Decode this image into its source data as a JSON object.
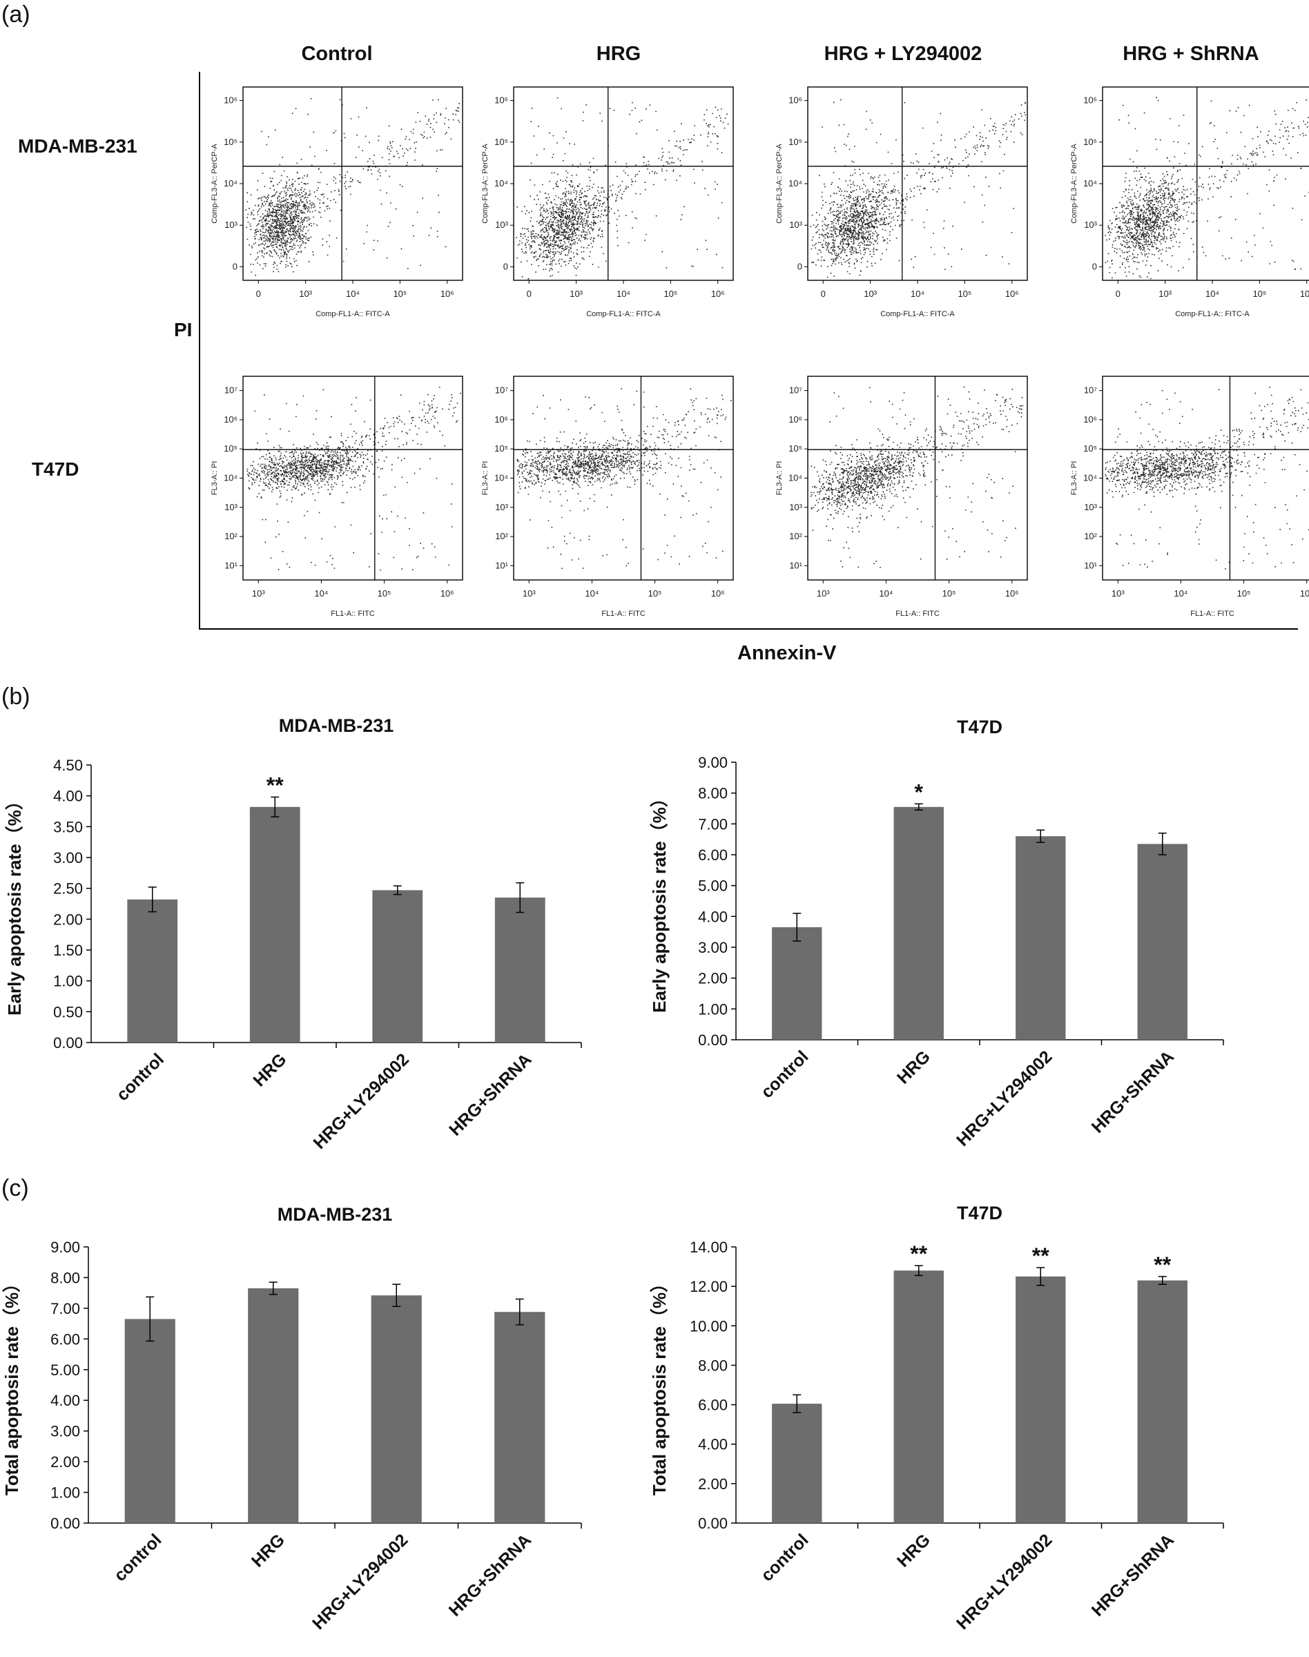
{
  "panels": {
    "a": "(a)",
    "b": "(b)",
    "c": "(c)"
  },
  "flow": {
    "columns": [
      "Control",
      "HRG",
      "HRG + LY294002",
      "HRG + ShRNA"
    ],
    "rows": [
      "MDA-MB-231",
      "T47D"
    ],
    "y_label": "PI",
    "x_label": "Annexin-V",
    "row_axes": [
      {
        "x_title": "Comp-FL1-A:: FITC-A",
        "y_title": "Comp-FL3-A:: PerCP-A",
        "x_ticks": [
          "0",
          "10³",
          "10⁴",
          "10⁵",
          "10⁶"
        ],
        "y_ticks": [
          "0",
          "10³",
          "10⁴",
          "10⁵",
          "10⁶"
        ]
      },
      {
        "x_title": "FL1-A:: FITC",
        "y_title": "FL3-A:: PI",
        "x_ticks": [
          "10³",
          "10⁴",
          "10⁵",
          "10⁶"
        ],
        "y_ticks": [
          "10¹",
          "10²",
          "10³",
          "10⁴",
          "10⁵",
          "10⁶",
          "10⁷"
        ]
      }
    ]
  },
  "chart_data": [
    {
      "id": "b-mda",
      "type": "bar",
      "title": "MDA-MB-231",
      "ylabel": "Early apoptosis rate（%）",
      "categories": [
        "control",
        "HRG",
        "HRG+LY294002",
        "HRG+ShRNA"
      ],
      "values": [
        2.32,
        3.82,
        2.47,
        2.35
      ],
      "errors": [
        0.2,
        0.16,
        0.07,
        0.24
      ],
      "significance": [
        "",
        "**",
        "",
        ""
      ],
      "ylim": [
        0,
        4.5
      ],
      "yticks": [
        "0.00",
        "0.50",
        "1.00",
        "1.50",
        "2.00",
        "2.50",
        "3.00",
        "3.50",
        "4.00",
        "4.50"
      ]
    },
    {
      "id": "b-t47d",
      "type": "bar",
      "title": "T47D",
      "ylabel": "Early apoptosis rate（%）",
      "categories": [
        "control",
        "HRG",
        "HRG+LY294002",
        "HRG+ShRNA"
      ],
      "values": [
        3.65,
        7.55,
        6.6,
        6.35
      ],
      "errors": [
        0.45,
        0.1,
        0.2,
        0.35
      ],
      "significance": [
        "",
        "*",
        "",
        ""
      ],
      "ylim": [
        0,
        9
      ],
      "yticks": [
        "0.00",
        "1.00",
        "2.00",
        "3.00",
        "4.00",
        "5.00",
        "6.00",
        "7.00",
        "8.00",
        "9.00"
      ]
    },
    {
      "id": "c-mda",
      "type": "bar",
      "title": "MDA-MB-231",
      "ylabel": "Total apoptosis rate（%）",
      "categories": [
        "control",
        "HRG",
        "HRG+LY294002",
        "HRG+ShRNA"
      ],
      "values": [
        6.65,
        7.65,
        7.42,
        6.88
      ],
      "errors": [
        0.72,
        0.2,
        0.36,
        0.42
      ],
      "significance": [
        "",
        "",
        "",
        ""
      ],
      "ylim": [
        0,
        9
      ],
      "yticks": [
        "0.00",
        "1.00",
        "2.00",
        "3.00",
        "4.00",
        "5.00",
        "6.00",
        "7.00",
        "8.00",
        "9.00"
      ]
    },
    {
      "id": "c-t47d",
      "type": "bar",
      "title": "T47D",
      "ylabel": "Total apoptosis rate（%）",
      "categories": [
        "control",
        "HRG",
        "HRG+LY294002",
        "HRG+ShRNA"
      ],
      "values": [
        6.05,
        12.8,
        12.5,
        12.3
      ],
      "errors": [
        0.45,
        0.25,
        0.45,
        0.2
      ],
      "significance": [
        "",
        "**",
        "**",
        "**"
      ],
      "ylim": [
        0,
        14
      ],
      "yticks": [
        "0.00",
        "2.00",
        "4.00",
        "6.00",
        "8.00",
        "10.00",
        "12.00",
        "14.00"
      ]
    }
  ],
  "colors": {
    "bar": "#6d6d6d",
    "dot": "#2a2a2a",
    "axis": "#000000"
  }
}
